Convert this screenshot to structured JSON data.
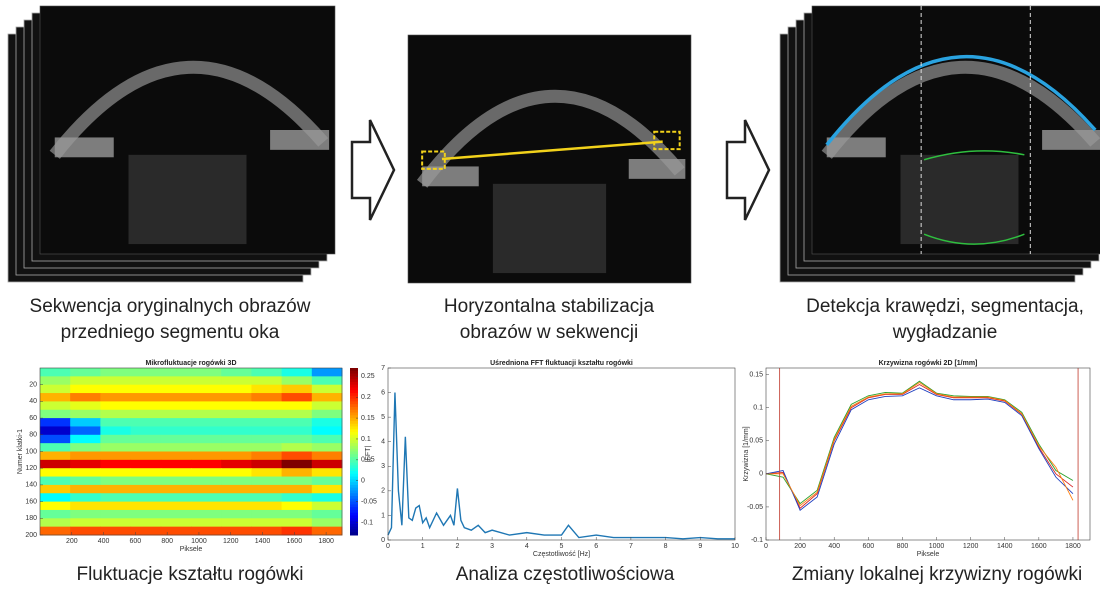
{
  "captions": {
    "top": [
      [
        "Sekwencja oryginalnych obrazów",
        "przedniego segmentu oka"
      ],
      [
        "Horyzontalna stabilizacja",
        "obrazów w sekwencji"
      ],
      [
        "Detekcja krawędzi, segmentacja,",
        "wygładzanie"
      ]
    ],
    "bottom": [
      "Fluktuacje kształtu rogówki",
      "Analiza częstotliwościowa",
      "Zmiany lokalnej krzywizny rogówki"
    ]
  },
  "chart_data": [
    {
      "type": "heatmap",
      "title": "Mikrofluktuacje rogówki 3D",
      "xlabel": "Piksele",
      "ylabel": "Numer klatki-1",
      "xlim": [
        0,
        1900
      ],
      "xticks": [
        200,
        400,
        600,
        800,
        1000,
        1200,
        1400,
        1600,
        1800
      ],
      "ylim": [
        0,
        200
      ],
      "yticks": [
        20,
        40,
        60,
        80,
        100,
        120,
        140,
        160,
        180,
        200
      ],
      "yreverse": true,
      "clim": [
        -0.13,
        0.27
      ],
      "cticks": [
        0.25,
        0.2,
        0.15,
        0.1,
        0.05,
        0,
        -0.05,
        -0.1
      ],
      "z": [
        [
          0.05,
          0.06,
          0.07,
          0.07,
          0.07,
          0.07,
          0.06,
          0.05,
          0.03,
          -0.02
        ],
        [
          0.08,
          0.1,
          0.1,
          0.1,
          0.1,
          0.1,
          0.1,
          0.1,
          0.08,
          0.05
        ],
        [
          0.1,
          0.12,
          0.12,
          0.12,
          0.12,
          0.12,
          0.12,
          0.13,
          0.14,
          0.1
        ],
        [
          0.15,
          0.17,
          0.16,
          0.16,
          0.16,
          0.16,
          0.16,
          0.17,
          0.19,
          0.15
        ],
        [
          0.1,
          0.11,
          0.12,
          0.12,
          0.12,
          0.12,
          0.12,
          0.12,
          0.12,
          0.1
        ],
        [
          0.07,
          0.08,
          0.09,
          0.09,
          0.09,
          0.09,
          0.09,
          0.09,
          0.09,
          0.07
        ],
        [
          -0.06,
          0.0,
          0.05,
          0.05,
          0.05,
          0.05,
          0.05,
          0.05,
          0.05,
          0.03
        ],
        [
          -0.1,
          -0.04,
          0.03,
          0.04,
          0.04,
          0.04,
          0.04,
          0.04,
          0.04,
          0.02
        ],
        [
          -0.05,
          0.02,
          0.06,
          0.06,
          0.06,
          0.06,
          0.06,
          0.06,
          0.06,
          0.05
        ],
        [
          0.05,
          0.07,
          0.08,
          0.08,
          0.08,
          0.08,
          0.08,
          0.08,
          0.09,
          0.08
        ],
        [
          0.15,
          0.16,
          0.16,
          0.16,
          0.16,
          0.16,
          0.16,
          0.17,
          0.19,
          0.17
        ],
        [
          0.24,
          0.23,
          0.22,
          0.22,
          0.22,
          0.22,
          0.23,
          0.24,
          0.27,
          0.24
        ],
        [
          0.12,
          0.12,
          0.12,
          0.12,
          0.12,
          0.12,
          0.12,
          0.13,
          0.15,
          0.13
        ],
        [
          0.05,
          0.06,
          0.07,
          0.07,
          0.07,
          0.07,
          0.07,
          0.07,
          0.07,
          0.06
        ],
        [
          0.14,
          0.15,
          0.15,
          0.15,
          0.15,
          0.15,
          0.15,
          0.15,
          0.15,
          0.13
        ],
        [
          0.02,
          0.04,
          0.05,
          0.05,
          0.05,
          0.05,
          0.05,
          0.05,
          0.04,
          0.03
        ],
        [
          0.12,
          0.13,
          0.13,
          0.13,
          0.13,
          0.13,
          0.13,
          0.13,
          0.12,
          0.1
        ],
        [
          0.06,
          0.07,
          0.07,
          0.07,
          0.07,
          0.07,
          0.07,
          0.07,
          0.07,
          0.06
        ],
        [
          0.09,
          0.1,
          0.1,
          0.1,
          0.1,
          0.1,
          0.1,
          0.1,
          0.1,
          0.08
        ],
        [
          0.18,
          0.19,
          0.19,
          0.19,
          0.19,
          0.19,
          0.19,
          0.19,
          0.2,
          0.18
        ]
      ]
    },
    {
      "type": "line",
      "title": "Uśredniona FFT fluktuacji kształtu rogówki",
      "xlabel": "Częstotliwość [Hz]",
      "ylabel": "|FFT|",
      "xlim": [
        0,
        10
      ],
      "xticks": [
        0,
        1,
        2,
        3,
        4,
        5,
        6,
        7,
        8,
        9,
        10
      ],
      "ylim": [
        0,
        7
      ],
      "yticks": [
        0,
        1,
        2,
        3,
        4,
        5,
        6,
        7
      ],
      "x": [
        0,
        0.1,
        0.2,
        0.3,
        0.4,
        0.5,
        0.6,
        0.7,
        0.8,
        0.9,
        1.0,
        1.1,
        1.2,
        1.4,
        1.6,
        1.8,
        1.9,
        2.0,
        2.1,
        2.2,
        2.4,
        2.6,
        2.8,
        3.0,
        3.5,
        4.0,
        4.5,
        5.0,
        5.2,
        5.5,
        6.0,
        6.5,
        7.0,
        7.5,
        8.0,
        8.5,
        9.0,
        9.5,
        10
      ],
      "series": [
        {
          "color": "#1f77b4",
          "values": [
            0.2,
            0.5,
            6.0,
            2.0,
            0.6,
            4.2,
            0.9,
            0.8,
            1.3,
            1.4,
            0.7,
            0.9,
            0.5,
            1.1,
            0.6,
            1.0,
            0.6,
            2.1,
            0.8,
            0.5,
            0.4,
            0.6,
            0.3,
            0.4,
            0.2,
            0.3,
            0.2,
            0.2,
            0.6,
            0.1,
            0.2,
            0.1,
            0.1,
            0.1,
            0.1,
            0.05,
            0.1,
            0.05,
            0.05
          ]
        }
      ]
    },
    {
      "type": "line",
      "title": "Krzywizna rogówki 2D [1/mm]",
      "xlabel": "Piksele",
      "ylabel": "Krzywizna [1/mm]",
      "xlim": [
        0,
        1900
      ],
      "xticks": [
        0,
        200,
        400,
        600,
        800,
        1000,
        1200,
        1400,
        1600,
        1800
      ],
      "ylim": [
        -0.1,
        0.16
      ],
      "yticks": [
        -0.1,
        -0.05,
        0,
        0.05,
        0.1,
        0.15
      ],
      "x": [
        0,
        100,
        200,
        300,
        400,
        500,
        600,
        700,
        800,
        900,
        1000,
        1100,
        1200,
        1300,
        1400,
        1500,
        1600,
        1700,
        1800
      ],
      "series": [
        {
          "color": "#d62728",
          "values": [
            0,
            0.002,
            -0.052,
            -0.03,
            0.05,
            0.1,
            0.115,
            0.12,
            0.12,
            0.135,
            0.12,
            0.115,
            0.115,
            0.115,
            0.11,
            0.09,
            0.04,
            0.0,
            -0.02
          ]
        },
        {
          "color": "#2ca02c",
          "values": [
            0,
            -0.005,
            -0.045,
            -0.025,
            0.055,
            0.105,
            0.118,
            0.123,
            0.122,
            0.14,
            0.122,
            0.118,
            0.117,
            0.117,
            0.112,
            0.093,
            0.045,
            0.005,
            -0.01
          ]
        },
        {
          "color": "#1f3fbf",
          "values": [
            0,
            0.005,
            -0.055,
            -0.035,
            0.045,
            0.097,
            0.112,
            0.117,
            0.118,
            0.13,
            0.118,
            0.112,
            0.112,
            0.113,
            0.108,
            0.088,
            0.038,
            -0.005,
            -0.03
          ]
        },
        {
          "color": "#ff7f0e",
          "values": [
            0,
            0.0,
            -0.048,
            -0.028,
            0.052,
            0.102,
            0.116,
            0.121,
            0.121,
            0.138,
            0.121,
            0.116,
            0.116,
            0.116,
            0.111,
            0.091,
            0.042,
            0.01,
            -0.04
          ]
        }
      ]
    }
  ]
}
